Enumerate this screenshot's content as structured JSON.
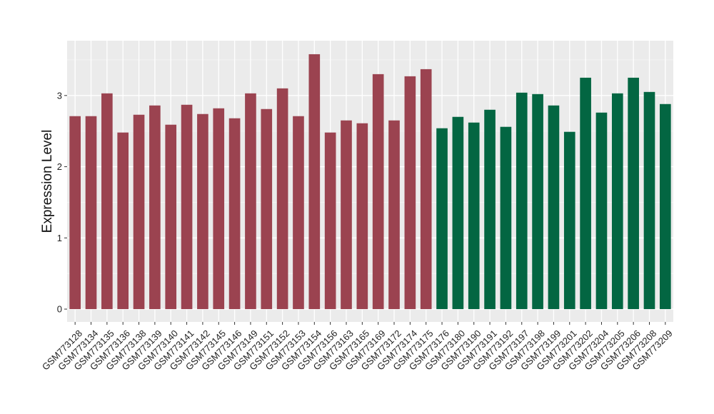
{
  "chart_data": {
    "type": "bar",
    "title": "",
    "xlabel": "",
    "ylabel": "Expression Level",
    "ylim": [
      -0.18,
      3.77
    ],
    "yticks": [
      0,
      1,
      2,
      3
    ],
    "grid": true,
    "legend": "none",
    "group_colors": {
      "first": "#9B4350",
      "second": "#036642"
    },
    "categories": [
      "GSM773128",
      "GSM773134",
      "GSM773135",
      "GSM773136",
      "GSM773138",
      "GSM773139",
      "GSM773140",
      "GSM773141",
      "GSM773142",
      "GSM773145",
      "GSM773146",
      "GSM773149",
      "GSM773151",
      "GSM773152",
      "GSM773153",
      "GSM773154",
      "GSM773156",
      "GSM773163",
      "GSM773165",
      "GSM773169",
      "GSM773172",
      "GSM773174",
      "GSM773175",
      "GSM773176",
      "GSM773180",
      "GSM773190",
      "GSM773191",
      "GSM773192",
      "GSM773197",
      "GSM773198",
      "GSM773199",
      "GSM773201",
      "GSM773202",
      "GSM773204",
      "GSM773205",
      "GSM773206",
      "GSM773208",
      "GSM773209"
    ],
    "values": [
      2.71,
      2.71,
      3.03,
      2.48,
      2.73,
      2.86,
      2.59,
      2.87,
      2.74,
      2.82,
      2.68,
      3.03,
      2.81,
      3.1,
      2.71,
      3.58,
      2.48,
      2.65,
      2.61,
      3.3,
      2.65,
      3.27,
      3.37,
      2.54,
      2.7,
      2.62,
      2.8,
      2.56,
      3.04,
      3.02,
      2.86,
      2.49,
      3.25,
      2.76,
      3.03,
      3.25,
      3.05,
      2.88
    ],
    "groups": [
      "first",
      "first",
      "first",
      "first",
      "first",
      "first",
      "first",
      "first",
      "first",
      "first",
      "first",
      "first",
      "first",
      "first",
      "first",
      "first",
      "first",
      "first",
      "first",
      "first",
      "first",
      "first",
      "first",
      "second",
      "second",
      "second",
      "second",
      "second",
      "second",
      "second",
      "second",
      "second",
      "second",
      "second",
      "second",
      "second",
      "second",
      "second"
    ]
  }
}
